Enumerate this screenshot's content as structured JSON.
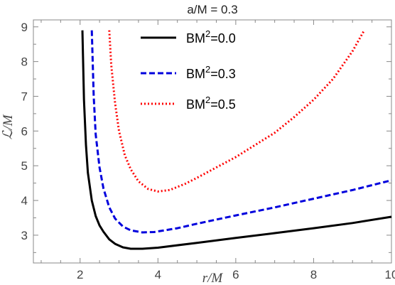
{
  "chart_data": {
    "type": "line",
    "title": "a/M = 0.3",
    "xlabel": "r/M",
    "ylabel": "ℒ/M",
    "xlim": [
      0.8,
      10
    ],
    "ylim": [
      2.2,
      9.2
    ],
    "x_ticks": [
      "2",
      "4",
      "6",
      "8",
      "10"
    ],
    "y_ticks": [
      "3",
      "4",
      "5",
      "6",
      "7",
      "8",
      "9"
    ],
    "grid": false,
    "legend_position": "top-center",
    "series": [
      {
        "name_base": "BM",
        "name_sup": "2",
        "name_suffix": "=0.0",
        "color": "#000000",
        "style": "solid",
        "points": [
          [
            2.06,
            8.9
          ],
          [
            2.1,
            6.9
          ],
          [
            2.15,
            5.6
          ],
          [
            2.2,
            4.8
          ],
          [
            2.3,
            4.0
          ],
          [
            2.4,
            3.55
          ],
          [
            2.5,
            3.28
          ],
          [
            2.6,
            3.1
          ],
          [
            2.75,
            2.88
          ],
          [
            2.9,
            2.75
          ],
          [
            3.1,
            2.65
          ],
          [
            3.3,
            2.61
          ],
          [
            3.6,
            2.61
          ],
          [
            4.0,
            2.64
          ],
          [
            5.0,
            2.78
          ],
          [
            6.0,
            2.92
          ],
          [
            7.0,
            3.06
          ],
          [
            8.0,
            3.2
          ],
          [
            9.0,
            3.35
          ],
          [
            10.0,
            3.53
          ]
        ]
      },
      {
        "name_base": "BM",
        "name_sup": "2",
        "name_suffix": "=0.3",
        "color": "#0000dd",
        "style": "dashed",
        "points": [
          [
            2.3,
            8.9
          ],
          [
            2.35,
            7.0
          ],
          [
            2.4,
            5.9
          ],
          [
            2.5,
            4.95
          ],
          [
            2.6,
            4.35
          ],
          [
            2.75,
            3.8
          ],
          [
            2.9,
            3.48
          ],
          [
            3.1,
            3.25
          ],
          [
            3.3,
            3.14
          ],
          [
            3.6,
            3.08
          ],
          [
            3.9,
            3.09
          ],
          [
            4.5,
            3.2
          ],
          [
            5.0,
            3.33
          ],
          [
            6.0,
            3.57
          ],
          [
            7.0,
            3.8
          ],
          [
            8.0,
            4.05
          ],
          [
            9.0,
            4.3
          ],
          [
            10.0,
            4.58
          ]
        ]
      },
      {
        "name_base": "BM",
        "name_sup": "2",
        "name_suffix": "=0.5",
        "color": "#ff0000",
        "style": "dotted",
        "points": [
          [
            2.75,
            8.9
          ],
          [
            2.8,
            7.9
          ],
          [
            2.9,
            6.8
          ],
          [
            3.0,
            6.0
          ],
          [
            3.15,
            5.3
          ],
          [
            3.3,
            4.9
          ],
          [
            3.5,
            4.55
          ],
          [
            3.75,
            4.33
          ],
          [
            4.0,
            4.26
          ],
          [
            4.3,
            4.3
          ],
          [
            4.7,
            4.48
          ],
          [
            5.0,
            4.65
          ],
          [
            5.5,
            4.95
          ],
          [
            6.0,
            5.25
          ],
          [
            6.5,
            5.6
          ],
          [
            7.0,
            5.95
          ],
          [
            7.5,
            6.4
          ],
          [
            8.0,
            6.9
          ],
          [
            8.5,
            7.5
          ],
          [
            9.0,
            8.3
          ],
          [
            9.3,
            8.9
          ]
        ]
      }
    ]
  }
}
